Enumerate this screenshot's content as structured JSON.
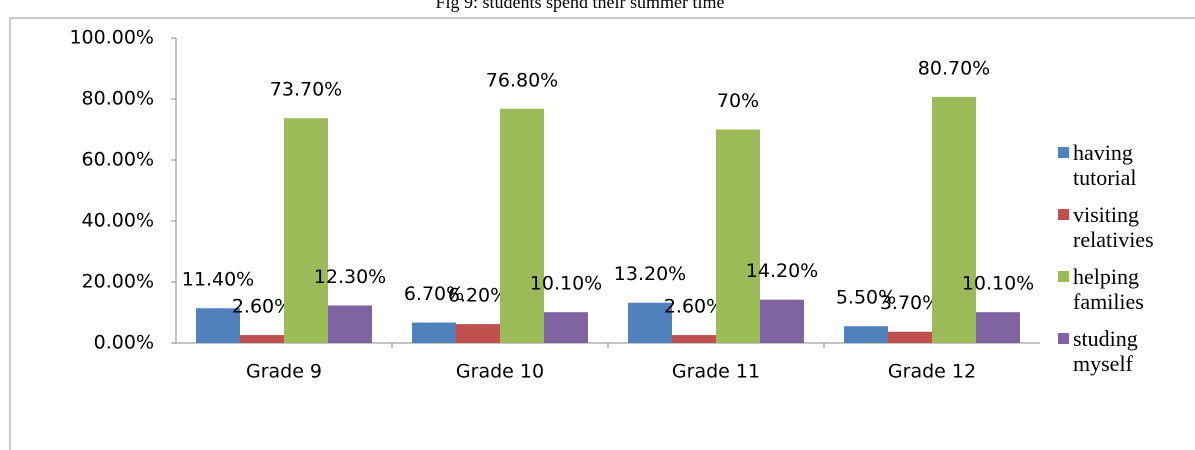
{
  "chart_data": {
    "type": "bar",
    "title": "Fig 9: students spend their summer time",
    "categories": [
      "Grade 9",
      "Grade 10",
      "Grade 11",
      "Grade 12"
    ],
    "series": [
      {
        "name": "having tutorial",
        "color": "#4f81bd",
        "values": [
          11.4,
          6.7,
          13.2,
          5.5
        ],
        "value_labels": [
          "11.40%",
          "6.70%",
          "13.20%",
          "5.50%"
        ]
      },
      {
        "name": "visiting relativies",
        "color": "#c0504d",
        "values": [
          2.6,
          6.2,
          2.6,
          3.7
        ],
        "value_labels": [
          "2.60%",
          "6.20%",
          "2.60%",
          "3.70%"
        ]
      },
      {
        "name": "helping families",
        "color": "#9bbb59",
        "values": [
          73.7,
          76.8,
          70,
          80.7
        ],
        "value_labels": [
          "73.70%",
          "76.80%",
          "70%",
          "80.70%"
        ]
      },
      {
        "name": "studing myself",
        "color": "#8064a2",
        "values": [
          12.3,
          10.1,
          14.2,
          10.1
        ],
        "value_labels": [
          "12.30%",
          "10.10%",
          "14.20%",
          "10.10%"
        ]
      }
    ],
    "ylim": [
      0,
      100
    ],
    "yticks": [
      {
        "value": 0,
        "label": "0.00%"
      },
      {
        "value": 20,
        "label": "20.00%"
      },
      {
        "value": 40,
        "label": "40.00%"
      },
      {
        "value": 60,
        "label": "60.00%"
      },
      {
        "value": 80,
        "label": "80.00%"
      },
      {
        "value": 100,
        "label": "100.00%"
      }
    ],
    "legend": "right"
  }
}
